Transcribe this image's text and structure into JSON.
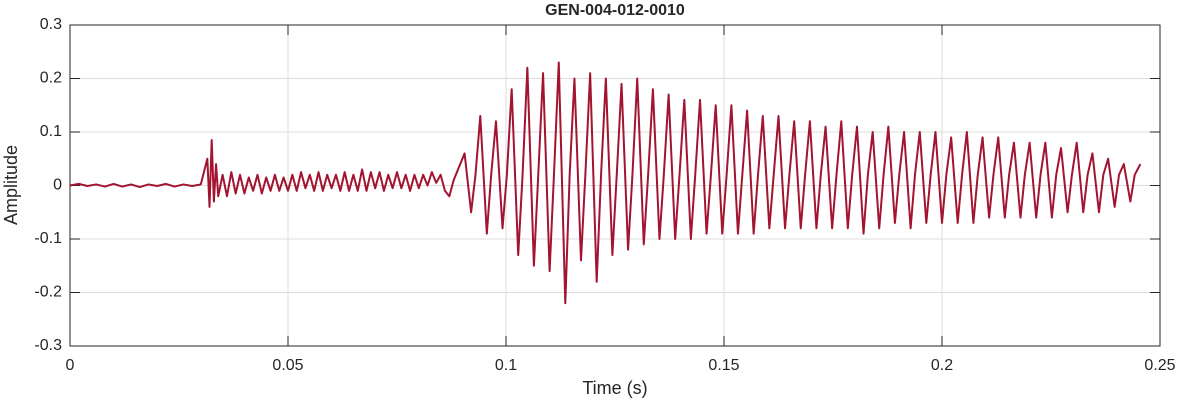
{
  "chart_data": {
    "type": "line",
    "title": "GEN-004-012-0010",
    "xlabel": "Time (s)",
    "ylabel": "Amplitude",
    "color": "#A2142F",
    "grid": true,
    "xlim": [
      0,
      0.25
    ],
    "xticks": [
      0,
      0.05,
      0.1,
      0.15,
      0.2,
      0.25
    ],
    "ylim": [
      -0.3,
      0.3
    ],
    "yticks": [
      -0.3,
      -0.2,
      -0.1,
      0,
      0.1,
      0.2,
      0.3
    ],
    "x": [
      0,
      0.002,
      0.004,
      0.006,
      0.008,
      0.01,
      0.012,
      0.014,
      0.016,
      0.018,
      0.02,
      0.022,
      0.024,
      0.026,
      0.028,
      0.03,
      0.0315,
      0.032,
      0.0325,
      0.033,
      0.0335,
      0.034,
      0.035,
      0.036,
      0.037,
      0.038,
      0.039,
      0.04,
      0.041,
      0.042,
      0.043,
      0.044,
      0.045,
      0.046,
      0.047,
      0.048,
      0.049,
      0.05,
      0.051,
      0.052,
      0.053,
      0.054,
      0.055,
      0.056,
      0.057,
      0.058,
      0.059,
      0.06,
      0.061,
      0.062,
      0.063,
      0.064,
      0.065,
      0.066,
      0.067,
      0.068,
      0.069,
      0.07,
      0.071,
      0.072,
      0.073,
      0.074,
      0.075,
      0.076,
      0.077,
      0.078,
      0.079,
      0.08,
      0.081,
      0.082,
      0.083,
      0.084,
      0.085,
      0.086,
      0.087,
      0.088,
      0.0905,
      0.092,
      0.093,
      0.0941,
      0.0956,
      0.0966,
      0.0977,
      0.0992,
      0.1002,
      0.1013,
      0.1028,
      0.1038,
      0.1049,
      0.1064,
      0.1074,
      0.1085,
      0.11,
      0.111,
      0.1121,
      0.1136,
      0.1146,
      0.1157,
      0.1172,
      0.1182,
      0.1193,
      0.1208,
      0.1218,
      0.1229,
      0.1244,
      0.1254,
      0.1265,
      0.128,
      0.129,
      0.1301,
      0.1316,
      0.1326,
      0.1337,
      0.1352,
      0.1362,
      0.1373,
      0.1388,
      0.1398,
      0.1409,
      0.1424,
      0.1434,
      0.1445,
      0.146,
      0.147,
      0.1481,
      0.1496,
      0.1506,
      0.1517,
      0.1532,
      0.1542,
      0.1553,
      0.1568,
      0.1578,
      0.1589,
      0.1604,
      0.1614,
      0.1625,
      0.164,
      0.165,
      0.1661,
      0.1676,
      0.1686,
      0.1697,
      0.1712,
      0.1722,
      0.1733,
      0.1748,
      0.1758,
      0.1769,
      0.1784,
      0.1794,
      0.1805,
      0.182,
      0.183,
      0.1841,
      0.1856,
      0.1866,
      0.1877,
      0.1892,
      0.1902,
      0.1913,
      0.1928,
      0.1938,
      0.1949,
      0.1964,
      0.1974,
      0.1985,
      0.2,
      0.201,
      0.2021,
      0.2036,
      0.2046,
      0.2057,
      0.2072,
      0.2082,
      0.2093,
      0.2108,
      0.2118,
      0.2129,
      0.2144,
      0.2154,
      0.2165,
      0.218,
      0.219,
      0.2201,
      0.2216,
      0.2226,
      0.2237,
      0.2252,
      0.2262,
      0.2273,
      0.2288,
      0.2298,
      0.2309,
      0.2324,
      0.2334,
      0.2345,
      0.236,
      0.237,
      0.2381,
      0.2396,
      0.2406,
      0.2417,
      0.2432,
      0.2442,
      0.2455
    ],
    "values": [
      0,
      0.003,
      -0.001,
      0.002,
      -0.002,
      0.003,
      -0.002,
      0.002,
      -0.003,
      0.002,
      -0.001,
      0.003,
      -0.002,
      0.002,
      -0.001,
      0.002,
      0.05,
      -0.04,
      0.085,
      -0.03,
      0.04,
      -0.02,
      0.02,
      -0.02,
      0.025,
      -0.015,
      0.02,
      -0.015,
      0.015,
      -0.01,
      0.02,
      -0.015,
      0.015,
      -0.01,
      0.02,
      -0.01,
      0.015,
      -0.01,
      0.02,
      -0.01,
      0.025,
      -0.005,
      0.02,
      -0.01,
      0.025,
      -0.01,
      0.02,
      -0.005,
      0.02,
      -0.01,
      0.025,
      -0.01,
      0.02,
      -0.01,
      0.03,
      -0.01,
      0.025,
      -0.005,
      0.025,
      -0.01,
      0.02,
      -0.005,
      0.025,
      -0.005,
      0.02,
      -0.01,
      0.02,
      -0.005,
      0.02,
      0,
      0.025,
      0.005,
      0.02,
      -0.01,
      -0.02,
      0.01,
      0.06,
      -0.05,
      0.02,
      0.13,
      -0.09,
      0.02,
      0.12,
      -0.08,
      0.02,
      0.18,
      -0.13,
      0.02,
      0.22,
      -0.15,
      0.02,
      0.21,
      -0.16,
      0.02,
      0.23,
      -0.22,
      0.02,
      0.2,
      -0.14,
      0.02,
      0.21,
      -0.18,
      0.02,
      0.2,
      -0.13,
      0.02,
      0.19,
      -0.12,
      0.02,
      0.2,
      -0.11,
      0.02,
      0.18,
      -0.1,
      0.02,
      0.17,
      -0.1,
      0.02,
      0.16,
      -0.1,
      0.02,
      0.16,
      -0.09,
      0.02,
      0.15,
      -0.09,
      0.02,
      0.15,
      -0.09,
      0.02,
      0.14,
      -0.09,
      0.02,
      0.13,
      -0.08,
      0.02,
      0.13,
      -0.08,
      0.02,
      0.12,
      -0.08,
      0.02,
      0.12,
      -0.08,
      0.02,
      0.11,
      -0.08,
      0.02,
      0.12,
      -0.08,
      0.02,
      0.11,
      -0.09,
      0.02,
      0.1,
      -0.08,
      0.02,
      0.11,
      -0.07,
      0.02,
      0.1,
      -0.08,
      0.02,
      0.1,
      -0.07,
      0.02,
      0.1,
      -0.07,
      0.02,
      0.09,
      -0.07,
      0.02,
      0.1,
      -0.07,
      0.02,
      0.09,
      -0.06,
      0.02,
      0.09,
      -0.06,
      0.02,
      0.08,
      -0.06,
      0.02,
      0.08,
      -0.06,
      0.02,
      0.08,
      -0.06,
      0.02,
      0.07,
      -0.05,
      0.02,
      0.08,
      -0.05,
      0.02,
      0.06,
      -0.05,
      0.02,
      0.05,
      -0.04,
      0.02,
      0.04,
      -0.03,
      0.02,
      0.04
    ]
  }
}
